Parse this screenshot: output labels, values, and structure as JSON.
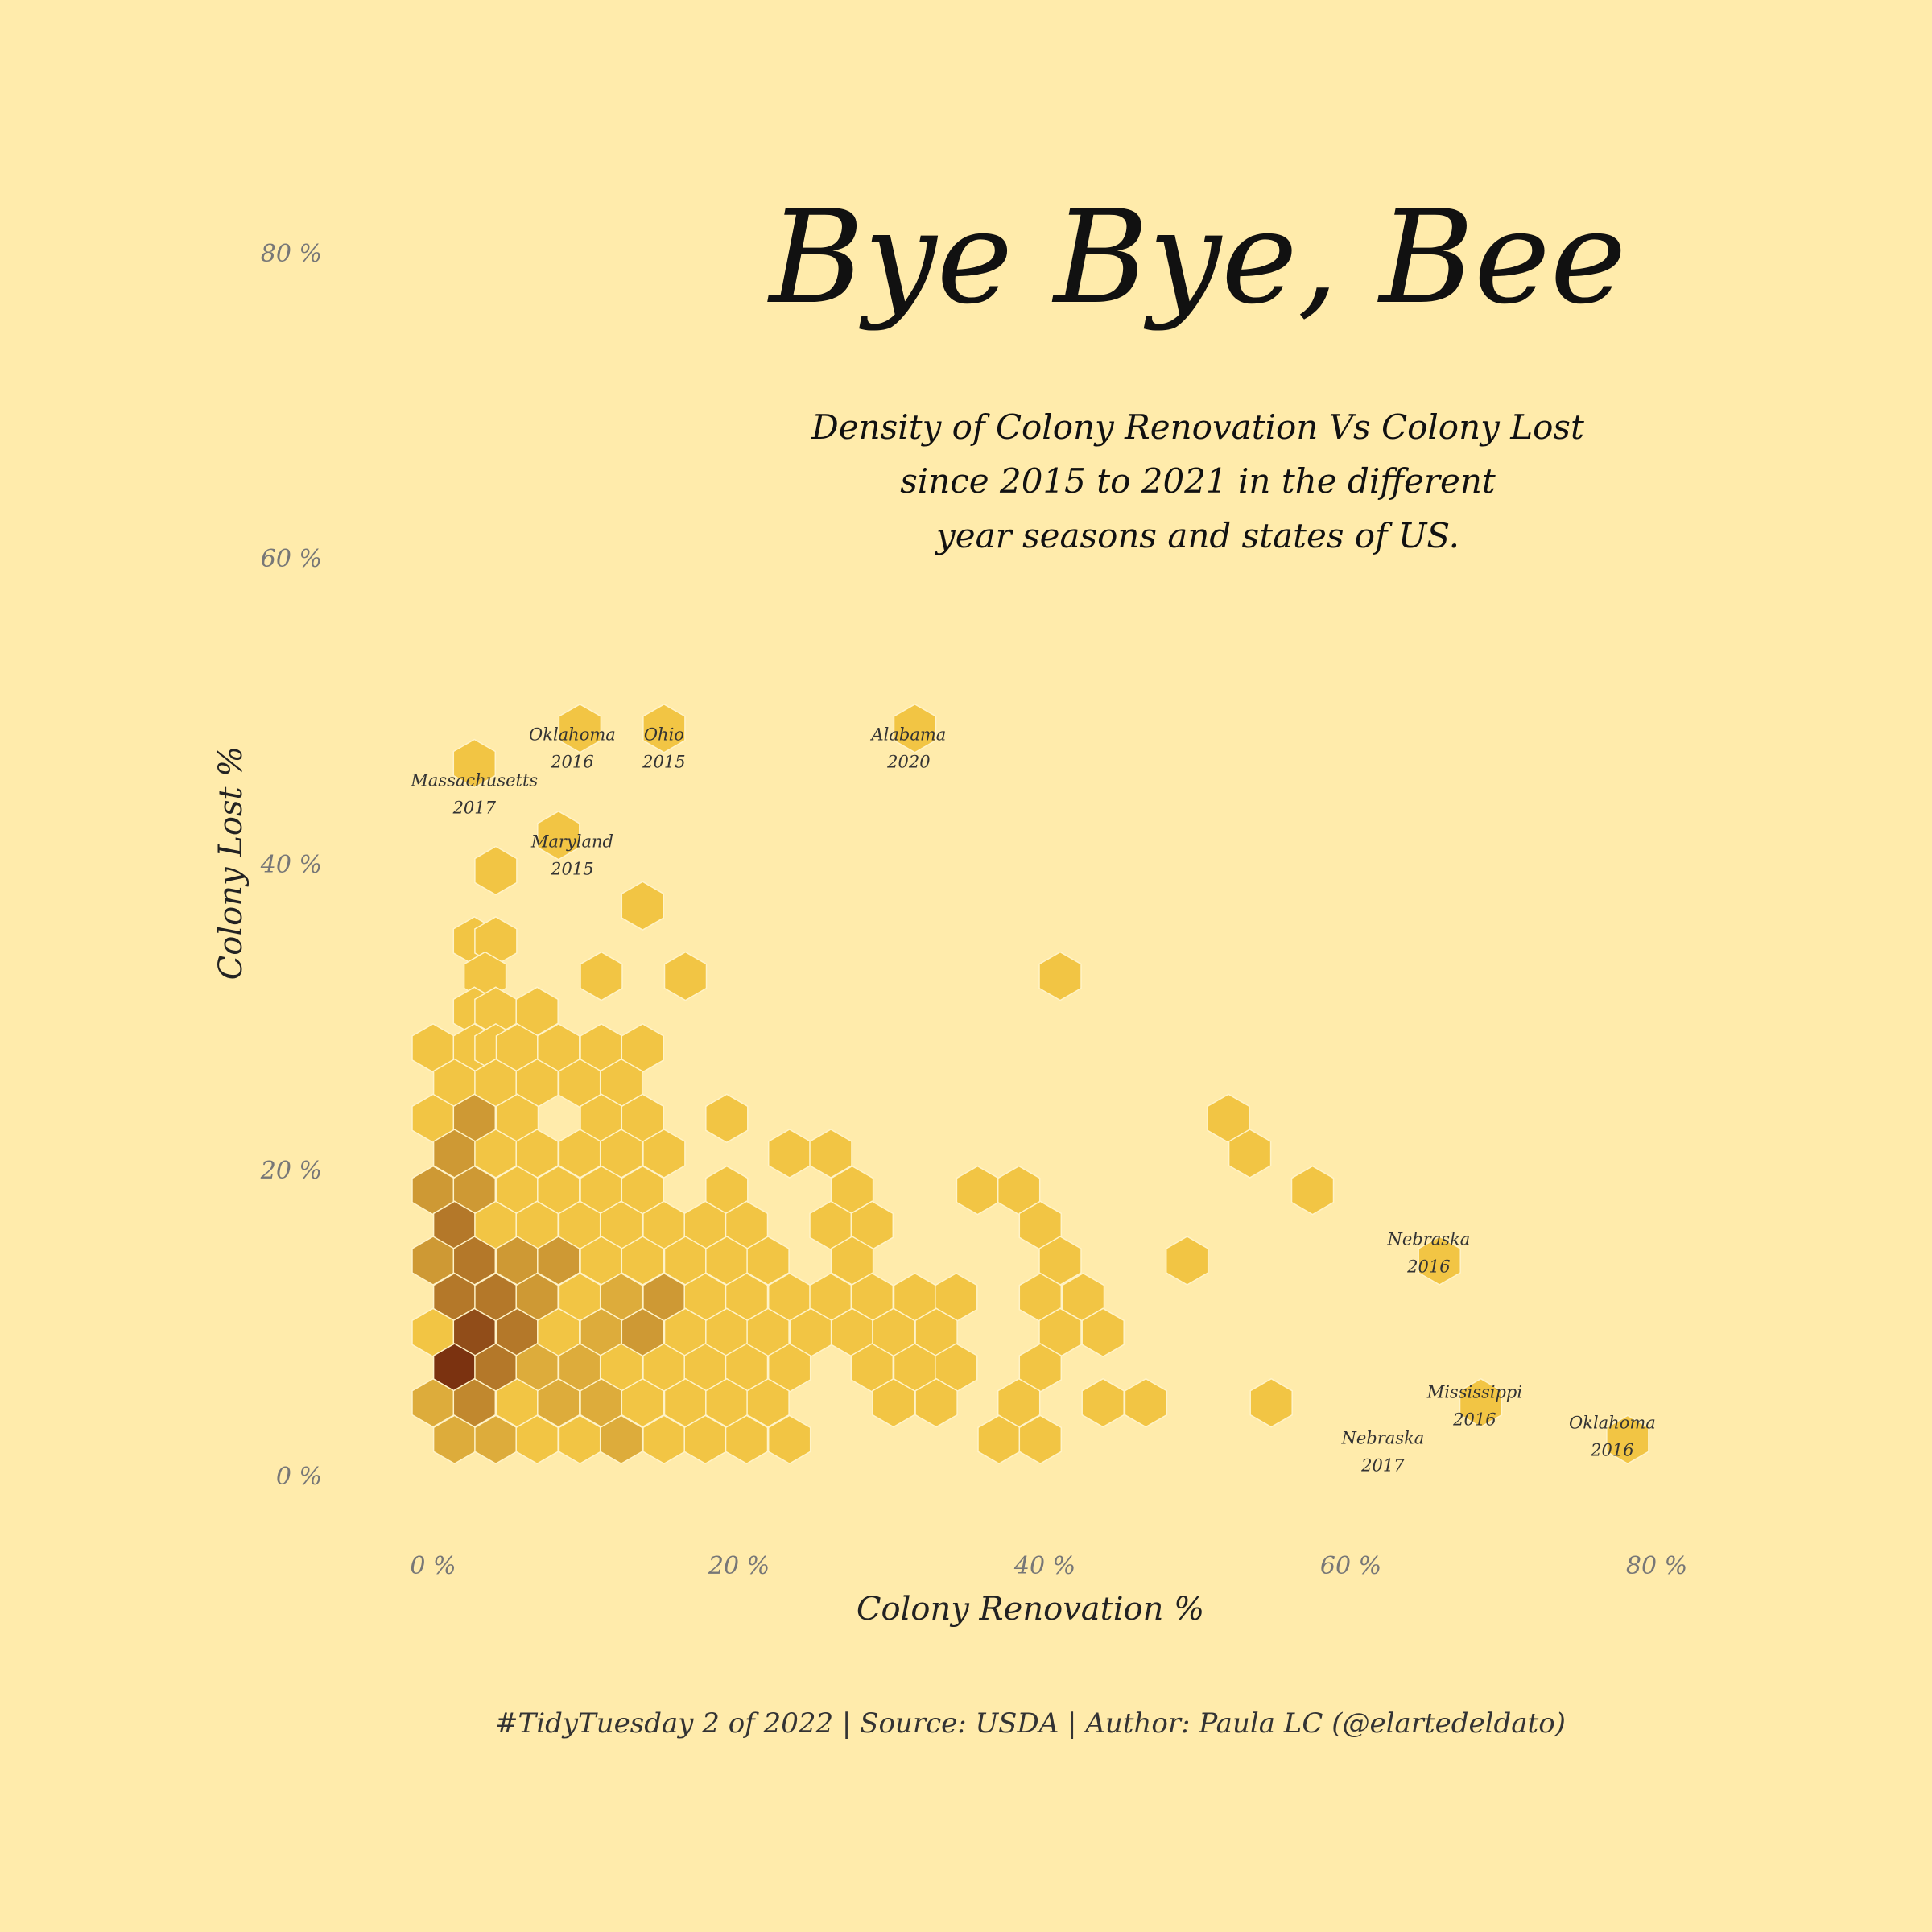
{
  "title": "Bye Bye, Bee",
  "subtitle": [
    "Density of Colony Renovation Vs Colony Lost",
    "since 2015 to 2021 in the different",
    "year seasons and states of US."
  ],
  "caption": "#TidyTuesday 2 of 2022 | Source: USDA | Author: Paula LC (@elartedeldato)",
  "colors": {
    "background": "#FFEBAB",
    "low": "#F2C544",
    "high": "#7B3210",
    "hex_stroke": "#FFF3C8"
  },
  "chart_data": {
    "type": "hexbin",
    "xlabel": "Colony Renovation %",
    "ylabel": "Colony Lost %",
    "xlim": [
      0,
      80
    ],
    "ylim": [
      0,
      80
    ],
    "xticks": [
      "0 %",
      "20 %",
      "40 %",
      "60 %",
      "80 %"
    ],
    "yticks": [
      "0 %",
      "20 %",
      "40 %",
      "60 %",
      "80 %"
    ],
    "bins": [
      [
        4.1,
        39.5,
        1
      ],
      [
        13.7,
        37.2,
        1
      ],
      [
        2.7,
        34.9,
        1
      ],
      [
        4.1,
        34.9,
        1
      ],
      [
        3.4,
        32.6,
        1
      ],
      [
        11.0,
        32.6,
        1
      ],
      [
        16.5,
        32.6,
        1
      ],
      [
        41.0,
        32.6,
        1
      ],
      [
        2.7,
        30.3,
        1
      ],
      [
        4.1,
        30.3,
        1
      ],
      [
        6.8,
        30.3,
        1
      ],
      [
        0.0,
        27.9,
        1
      ],
      [
        2.7,
        27.9,
        1
      ],
      [
        4.1,
        27.9,
        1
      ],
      [
        5.5,
        27.9,
        1
      ],
      [
        8.2,
        27.9,
        1
      ],
      [
        11.0,
        27.9,
        1
      ],
      [
        13.7,
        27.9,
        1
      ],
      [
        1.4,
        25.6,
        1
      ],
      [
        4.1,
        25.6,
        1
      ],
      [
        6.8,
        25.6,
        1
      ],
      [
        9.6,
        25.6,
        1
      ],
      [
        12.3,
        25.6,
        1
      ],
      [
        0.0,
        23.3,
        1
      ],
      [
        2.7,
        23.3,
        3
      ],
      [
        5.5,
        23.3,
        1
      ],
      [
        11.0,
        23.3,
        1
      ],
      [
        13.7,
        23.3,
        1
      ],
      [
        19.2,
        23.3,
        1
      ],
      [
        52.0,
        23.3,
        1
      ],
      [
        1.4,
        21.0,
        3
      ],
      [
        4.1,
        21.0,
        1
      ],
      [
        6.8,
        21.0,
        1
      ],
      [
        9.6,
        21.0,
        1
      ],
      [
        12.3,
        21.0,
        1
      ],
      [
        15.1,
        21.0,
        1
      ],
      [
        23.3,
        21.0,
        1
      ],
      [
        26.0,
        21.0,
        1
      ],
      [
        53.4,
        21.0,
        1
      ],
      [
        0.0,
        18.6,
        3
      ],
      [
        2.7,
        18.6,
        3
      ],
      [
        5.5,
        18.6,
        1
      ],
      [
        8.2,
        18.6,
        1
      ],
      [
        11.0,
        18.6,
        1
      ],
      [
        13.7,
        18.6,
        1
      ],
      [
        19.2,
        18.6,
        1
      ],
      [
        27.4,
        18.6,
        1
      ],
      [
        35.6,
        18.6,
        1
      ],
      [
        38.3,
        18.6,
        1
      ],
      [
        57.5,
        18.6,
        1
      ],
      [
        1.4,
        16.3,
        5
      ],
      [
        4.1,
        16.3,
        1
      ],
      [
        6.8,
        16.3,
        1
      ],
      [
        9.6,
        16.3,
        1
      ],
      [
        12.3,
        16.3,
        1
      ],
      [
        15.1,
        16.3,
        1
      ],
      [
        17.8,
        16.3,
        1
      ],
      [
        20.5,
        16.3,
        1
      ],
      [
        26.0,
        16.3,
        1
      ],
      [
        28.7,
        16.3,
        1
      ],
      [
        39.7,
        16.3,
        1
      ],
      [
        0.0,
        14.0,
        3
      ],
      [
        2.7,
        14.0,
        5
      ],
      [
        5.5,
        14.0,
        3
      ],
      [
        8.2,
        14.0,
        3
      ],
      [
        11.0,
        14.0,
        1
      ],
      [
        13.7,
        14.0,
        1
      ],
      [
        16.5,
        14.0,
        1
      ],
      [
        19.2,
        14.0,
        1
      ],
      [
        21.9,
        14.0,
        1
      ],
      [
        27.4,
        14.0,
        1
      ],
      [
        41.0,
        14.0,
        1
      ],
      [
        49.3,
        14.0,
        1
      ],
      [
        65.8,
        14.0,
        1
      ],
      [
        1.4,
        11.6,
        5
      ],
      [
        4.1,
        11.6,
        5
      ],
      [
        6.8,
        11.6,
        3
      ],
      [
        9.6,
        11.6,
        1
      ],
      [
        12.3,
        11.6,
        2
      ],
      [
        15.1,
        11.6,
        3
      ],
      [
        17.8,
        11.6,
        1
      ],
      [
        20.5,
        11.6,
        1
      ],
      [
        23.3,
        11.6,
        1
      ],
      [
        26.0,
        11.6,
        1
      ],
      [
        28.7,
        11.6,
        1
      ],
      [
        31.5,
        11.6,
        1
      ],
      [
        34.2,
        11.6,
        1
      ],
      [
        39.7,
        11.6,
        1
      ],
      [
        42.5,
        11.6,
        1
      ],
      [
        0.0,
        9.3,
        1
      ],
      [
        2.7,
        9.3,
        8
      ],
      [
        5.5,
        9.3,
        5
      ],
      [
        8.2,
        9.3,
        1
      ],
      [
        11.0,
        9.3,
        2
      ],
      [
        13.7,
        9.3,
        3
      ],
      [
        16.5,
        9.3,
        1
      ],
      [
        19.2,
        9.3,
        1
      ],
      [
        21.9,
        9.3,
        1
      ],
      [
        24.7,
        9.3,
        1
      ],
      [
        27.4,
        9.3,
        1
      ],
      [
        30.1,
        9.3,
        1
      ],
      [
        32.9,
        9.3,
        1
      ],
      [
        41.0,
        9.3,
        1
      ],
      [
        43.8,
        9.3,
        1
      ],
      [
        1.4,
        7.0,
        10
      ],
      [
        4.1,
        7.0,
        5
      ],
      [
        6.8,
        7.0,
        2
      ],
      [
        9.6,
        7.0,
        2
      ],
      [
        12.3,
        7.0,
        1
      ],
      [
        15.1,
        7.0,
        1
      ],
      [
        17.8,
        7.0,
        1
      ],
      [
        20.5,
        7.0,
        1
      ],
      [
        23.3,
        7.0,
        1
      ],
      [
        28.7,
        7.0,
        1
      ],
      [
        31.5,
        7.0,
        1
      ],
      [
        34.2,
        7.0,
        1
      ],
      [
        39.7,
        7.0,
        1
      ],
      [
        0.0,
        4.7,
        2
      ],
      [
        2.7,
        4.7,
        4
      ],
      [
        5.5,
        4.7,
        1
      ],
      [
        8.2,
        4.7,
        2
      ],
      [
        11.0,
        4.7,
        2
      ],
      [
        13.7,
        4.7,
        1
      ],
      [
        16.5,
        4.7,
        1
      ],
      [
        19.2,
        4.7,
        1
      ],
      [
        21.9,
        4.7,
        1
      ],
      [
        30.1,
        4.7,
        1
      ],
      [
        32.9,
        4.7,
        1
      ],
      [
        38.3,
        4.7,
        1
      ],
      [
        43.8,
        4.7,
        1
      ],
      [
        46.6,
        4.7,
        1
      ],
      [
        54.8,
        4.7,
        1
      ],
      [
        68.5,
        4.7,
        1
      ],
      [
        1.4,
        2.3,
        2
      ],
      [
        4.1,
        2.3,
        2
      ],
      [
        6.8,
        2.3,
        1
      ],
      [
        9.6,
        2.3,
        1
      ],
      [
        12.3,
        2.3,
        2
      ],
      [
        15.1,
        2.3,
        1
      ],
      [
        17.8,
        2.3,
        1
      ],
      [
        20.5,
        2.3,
        1
      ],
      [
        23.3,
        2.3,
        1
      ],
      [
        37.0,
        2.3,
        1
      ],
      [
        39.7,
        2.3,
        1
      ],
      [
        78.1,
        2.3,
        1
      ],
      [
        2.7,
        46.5,
        1
      ],
      [
        9.6,
        48.8,
        1
      ],
      [
        15.1,
        48.8,
        1
      ],
      [
        31.5,
        48.8,
        1
      ],
      [
        8.2,
        41.8,
        1
      ]
    ],
    "annotations": [
      {
        "state": "Massachusetts",
        "year": "2017",
        "x": 2.7,
        "y": 45.5
      },
      {
        "state": "Oklahoma",
        "year": "2016",
        "x": 9.1,
        "y": 48.5
      },
      {
        "state": "Ohio",
        "year": "2015",
        "x": 15.1,
        "y": 48.5
      },
      {
        "state": "Alabama",
        "year": "2020",
        "x": 31.1,
        "y": 48.5
      },
      {
        "state": "Maryland",
        "year": "2015",
        "x": 9.1,
        "y": 41.5
      },
      {
        "state": "Nebraska",
        "year": "2016",
        "x": 65.1,
        "y": 15.5
      },
      {
        "state": "Mississippi",
        "year": "2016",
        "x": 68.1,
        "y": 5.5
      },
      {
        "state": "Nebraska",
        "year": "2017",
        "x": 62.1,
        "y": 2.5
      },
      {
        "state": "Oklahoma",
        "year": "2016",
        "x": 77.1,
        "y": 3.5
      }
    ]
  }
}
